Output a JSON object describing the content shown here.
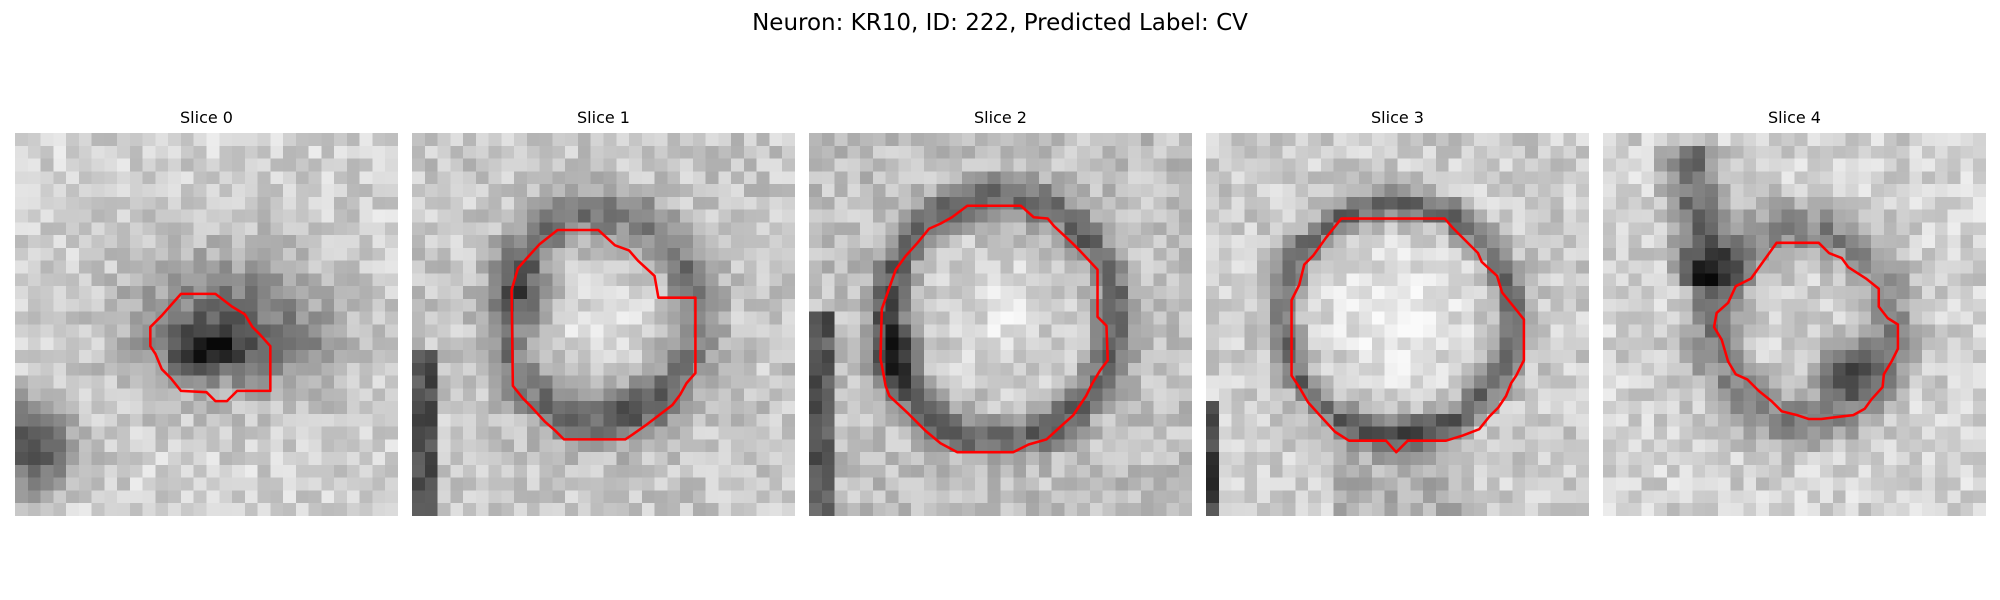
{
  "figure": {
    "title": "Neuron: KR10, ID: 222, Predicted Label: CV"
  },
  "panels": [
    {
      "title": "Slice 0"
    },
    {
      "title": "Slice 1"
    },
    {
      "title": "Slice 2"
    },
    {
      "title": "Slice 3"
    },
    {
      "title": "Slice 4"
    }
  ],
  "colors": {
    "contour": "#ff0000"
  }
}
